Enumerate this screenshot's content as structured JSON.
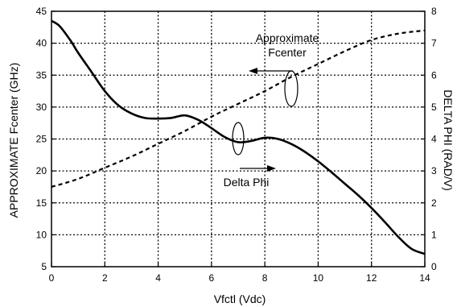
{
  "chart_data": {
    "type": "line",
    "title": "",
    "xlabel": "Vfctl (Vdc)",
    "ylabel": "APPROXIMATE Fcenter (GHz)",
    "y2label": "DELTA PHI (RAD/V)",
    "xlim": [
      0,
      14
    ],
    "ylim": [
      5,
      45
    ],
    "y2lim": [
      0,
      8
    ],
    "grid": true,
    "x_ticks": [
      "0",
      "2",
      "4",
      "6",
      "8",
      "10",
      "12",
      "14"
    ],
    "y_ticks": [
      "5",
      "10",
      "15",
      "20",
      "25",
      "30",
      "35",
      "40",
      "45"
    ],
    "y2_ticks": [
      "0",
      "1",
      "2",
      "3",
      "4",
      "5",
      "6",
      "7",
      "8"
    ],
    "annotations": [
      {
        "text_lines": [
          "Approximate",
          "Fcenter"
        ],
        "points_to": "y2-axis series"
      },
      {
        "text_lines": [
          "Delta Phi"
        ],
        "points_to": "y-axis series"
      }
    ],
    "series": [
      {
        "axis": "left",
        "style": "solid",
        "x": [
          0,
          0.3,
          0.7,
          1,
          1.5,
          2,
          2.5,
          3,
          3.5,
          4,
          4.5,
          5,
          5.5,
          6,
          6.5,
          7,
          7.5,
          8,
          8.5,
          9,
          9.5,
          10,
          10.5,
          11,
          11.5,
          12,
          12.5,
          13,
          13.5,
          14
        ],
        "values": [
          43.5,
          42.7,
          40.5,
          38.5,
          35.5,
          32.5,
          30.3,
          29.0,
          28.3,
          28.2,
          28.3,
          28.7,
          28.0,
          26.7,
          25.3,
          24.5,
          24.7,
          25.2,
          25.0,
          24.2,
          23.0,
          21.5,
          19.8,
          18.0,
          16.2,
          14.2,
          12.0,
          9.7,
          7.8,
          7.0
        ]
      },
      {
        "axis": "right",
        "style": "dashed",
        "x": [
          0,
          1,
          2,
          3,
          4,
          5,
          6,
          7,
          8,
          9,
          10,
          11,
          12,
          13,
          14
        ],
        "values": [
          2.5,
          2.75,
          3.1,
          3.45,
          3.85,
          4.25,
          4.7,
          5.1,
          5.5,
          5.95,
          6.35,
          6.75,
          7.1,
          7.3,
          7.4
        ]
      }
    ]
  }
}
